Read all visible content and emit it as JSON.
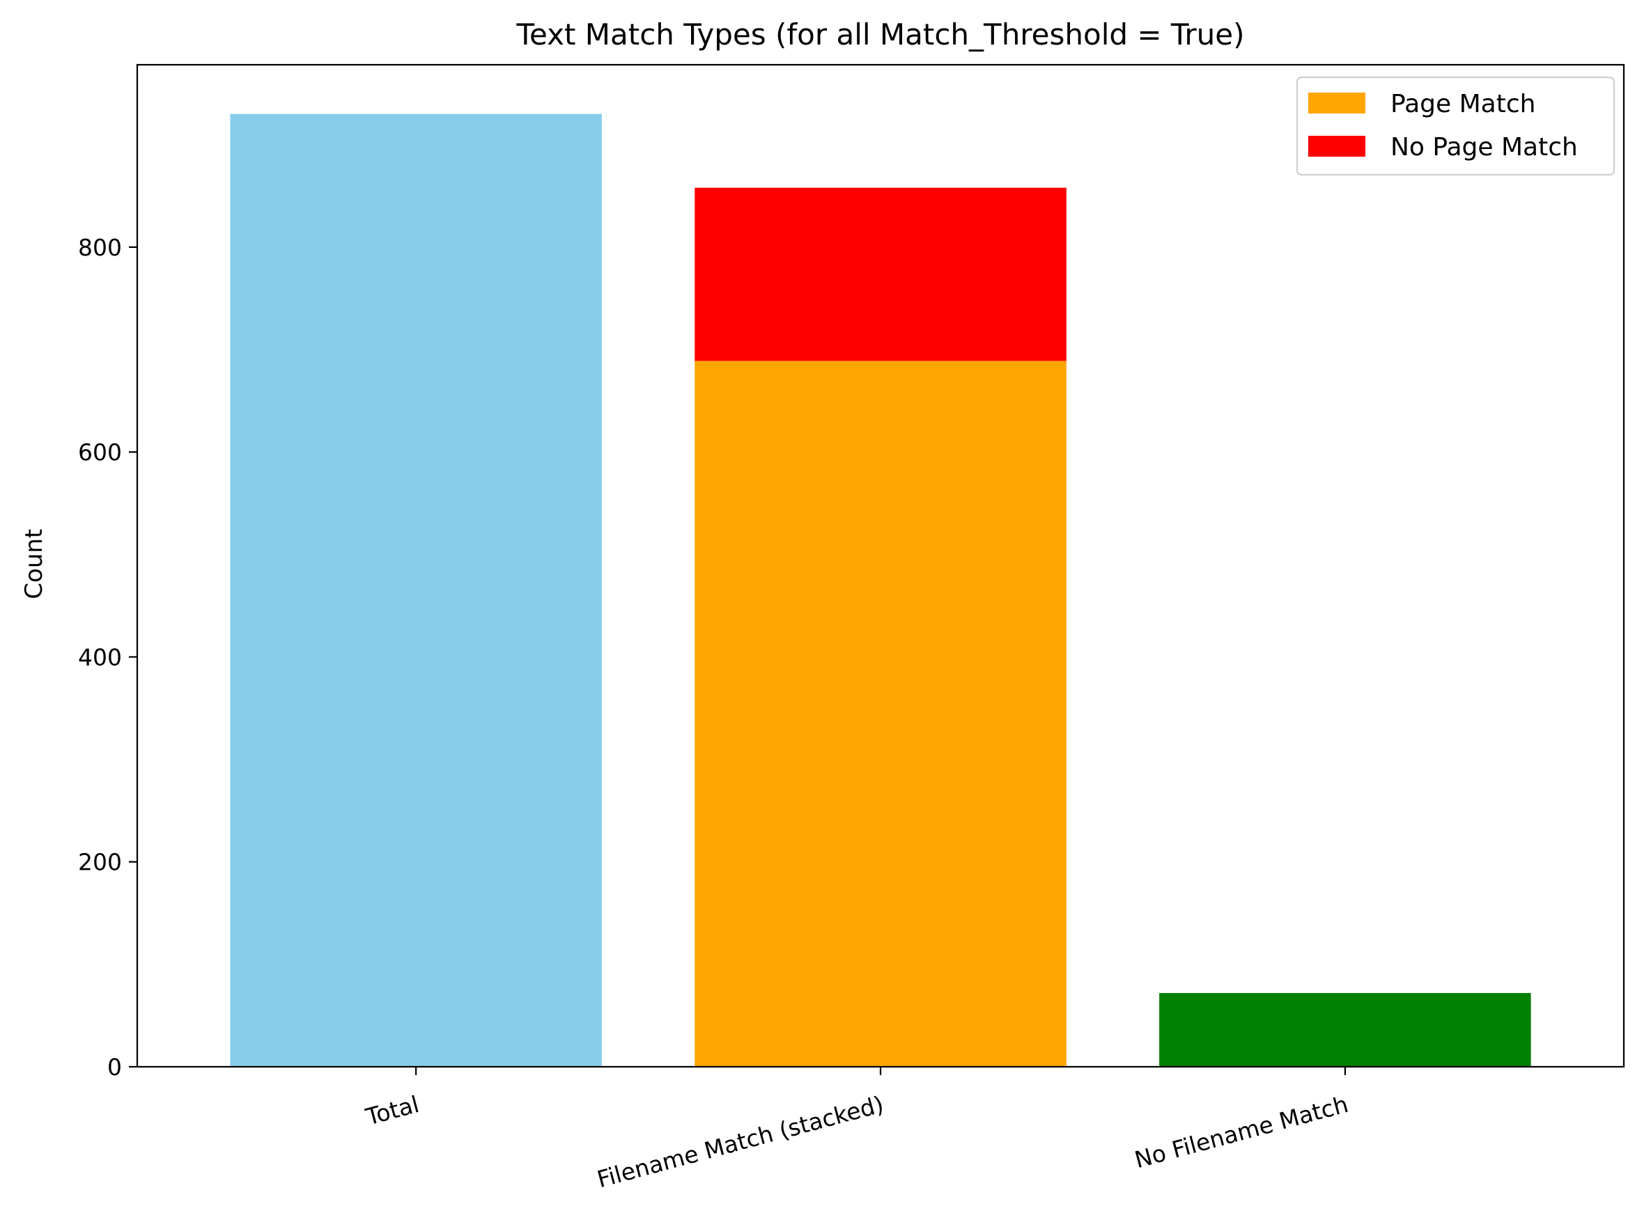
{
  "chart_data": {
    "type": "bar",
    "title": "Text Match Types (for all Match_Threshold = True)",
    "xlabel": "",
    "ylabel": "Count",
    "ylim": [
      0,
      978
    ],
    "yticks": [
      0,
      200,
      400,
      600,
      800
    ],
    "categories": [
      "Total",
      "Filename Match (stacked)",
      "No Filename Match"
    ],
    "bars": [
      {
        "category": "Total",
        "segments": [
          {
            "series": "",
            "value": 930,
            "color": "#87ceeb"
          }
        ]
      },
      {
        "category": "Filename Match (stacked)",
        "segments": [
          {
            "series": "Page Match",
            "value": 689,
            "color": "#ffa500"
          },
          {
            "series": "No Page Match",
            "value": 169,
            "color": "#ff0000"
          }
        ]
      },
      {
        "category": "No Filename Match",
        "segments": [
          {
            "series": "",
            "value": 72,
            "color": "#008000"
          }
        ]
      }
    ],
    "legend": {
      "position": "top-right",
      "entries": [
        {
          "label": "Page Match",
          "color": "#ffa500"
        },
        {
          "label": "No Page Match",
          "color": "#ff0000"
        }
      ]
    },
    "grid": false,
    "xtick_rotation_deg": -15
  }
}
